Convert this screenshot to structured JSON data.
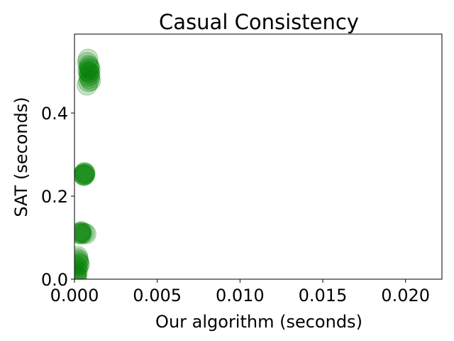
{
  "chart_data": {
    "type": "scatter",
    "title": "Casual Consistency",
    "xlabel": "Our algorithm (seconds)",
    "ylabel": "SAT (seconds)",
    "xlim": [
      0,
      0.0222
    ],
    "ylim": [
      0,
      0.59
    ],
    "xticks": [
      0.0,
      0.005,
      0.01,
      0.015,
      0.02
    ],
    "xtick_labels": [
      "0.000",
      "0.005",
      "0.010",
      "0.015",
      "0.020"
    ],
    "yticks": [
      0.0,
      0.2,
      0.4
    ],
    "ytick_labels": [
      "0.0",
      "0.2",
      "0.4"
    ],
    "grid": false,
    "marker_color": "#008000",
    "marker_alpha": 0.22,
    "series": [
      {
        "points": [
          {
            "x": 0.00082,
            "y": 0.53
          },
          {
            "x": 0.00078,
            "y": 0.522
          },
          {
            "x": 0.00085,
            "y": 0.515
          },
          {
            "x": 0.00088,
            "y": 0.508
          },
          {
            "x": 0.0008,
            "y": 0.502
          },
          {
            "x": 0.0009,
            "y": 0.497
          },
          {
            "x": 0.00094,
            "y": 0.492
          },
          {
            "x": 0.00086,
            "y": 0.488
          },
          {
            "x": 0.00092,
            "y": 0.483
          },
          {
            "x": 0.00098,
            "y": 0.478
          },
          {
            "x": 0.00084,
            "y": 0.475
          },
          {
            "x": 0.00076,
            "y": 0.467
          },
          {
            "x": 0.0009,
            "y": 0.512
          },
          {
            "x": 0.00096,
            "y": 0.505
          },
          {
            "x": 0.00087,
            "y": 0.498
          },
          {
            "x": 0.0006,
            "y": 0.257
          },
          {
            "x": 0.00055,
            "y": 0.254
          },
          {
            "x": 0.00062,
            "y": 0.252
          },
          {
            "x": 0.00058,
            "y": 0.25
          },
          {
            "x": 0.00065,
            "y": 0.253
          },
          {
            "x": 0.00052,
            "y": 0.251
          },
          {
            "x": 0.00057,
            "y": 0.249
          },
          {
            "x": 0.00063,
            "y": 0.256
          },
          {
            "x": 0.0004,
            "y": 0.115
          },
          {
            "x": 0.00035,
            "y": 0.112
          },
          {
            "x": 0.00045,
            "y": 0.11
          },
          {
            "x": 0.00038,
            "y": 0.108
          },
          {
            "x": 0.00042,
            "y": 0.113
          },
          {
            "x": 0.0006,
            "y": 0.111
          },
          {
            "x": 0.0007,
            "y": 0.109
          },
          {
            "x": 0.00033,
            "y": 0.11
          },
          {
            "x": 0.0002,
            "y": 0.055
          },
          {
            "x": 0.00018,
            "y": 0.05
          },
          {
            "x": 0.00025,
            "y": 0.046
          },
          {
            "x": 0.00022,
            "y": 0.042
          },
          {
            "x": 0.00028,
            "y": 0.038
          },
          {
            "x": 0.0003,
            "y": 0.035
          },
          {
            "x": 0.00015,
            "y": 0.032
          },
          {
            "x": 0.0002,
            "y": 0.028
          },
          {
            "x": 0.00012,
            "y": 0.022
          },
          {
            "x": 0.00018,
            "y": 0.018
          },
          {
            "x": 0.0001,
            "y": 0.012
          },
          {
            "x": 0.00015,
            "y": 0.008
          },
          {
            "x": 8e-05,
            "y": 0.004
          },
          {
            "x": 0.00012,
            "y": 0.002
          }
        ]
      }
    ]
  }
}
